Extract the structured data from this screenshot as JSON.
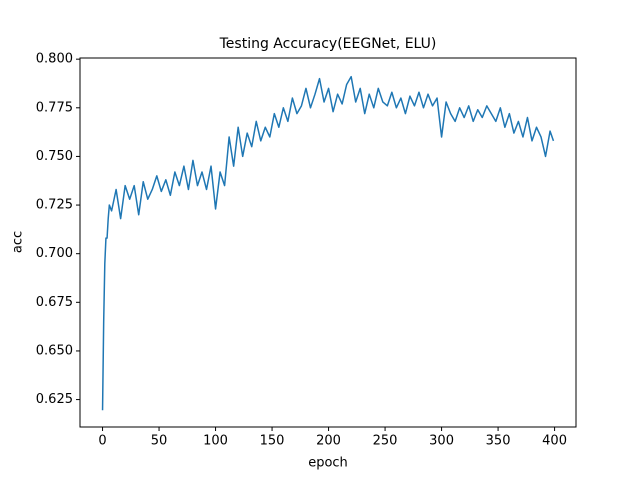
{
  "chart_data": {
    "type": "line",
    "title": "Testing Accuracy(EEGNet, ELU)",
    "x_label": "epoch",
    "y_label": "acc",
    "x": [
      0,
      1,
      2,
      3,
      4,
      5,
      6,
      8,
      12,
      16,
      20,
      24,
      28,
      32,
      36,
      40,
      44,
      48,
      52,
      56,
      60,
      64,
      68,
      72,
      76,
      80,
      84,
      88,
      92,
      96,
      100,
      104,
      108,
      112,
      116,
      120,
      124,
      128,
      132,
      136,
      140,
      144,
      148,
      152,
      156,
      160,
      164,
      168,
      172,
      176,
      180,
      184,
      188,
      192,
      196,
      200,
      204,
      208,
      212,
      216,
      220,
      224,
      228,
      232,
      236,
      240,
      244,
      248,
      252,
      256,
      260,
      264,
      268,
      272,
      276,
      280,
      284,
      288,
      292,
      296,
      300,
      304,
      308,
      312,
      316,
      320,
      324,
      328,
      332,
      336,
      340,
      344,
      348,
      352,
      356,
      360,
      364,
      368,
      372,
      376,
      380,
      384,
      388,
      392,
      396,
      399
    ],
    "series": [
      {
        "name": "acc",
        "color": "#1f77b4",
        "values": [
          0.6195,
          0.665,
          0.695,
          0.708,
          0.708,
          0.718,
          0.725,
          0.722,
          0.733,
          0.718,
          0.735,
          0.728,
          0.735,
          0.72,
          0.737,
          0.728,
          0.733,
          0.74,
          0.732,
          0.738,
          0.73,
          0.742,
          0.735,
          0.745,
          0.733,
          0.748,
          0.735,
          0.742,
          0.733,
          0.745,
          0.723,
          0.742,
          0.735,
          0.76,
          0.745,
          0.765,
          0.75,
          0.762,
          0.755,
          0.768,
          0.758,
          0.765,
          0.76,
          0.772,
          0.765,
          0.775,
          0.768,
          0.78,
          0.772,
          0.776,
          0.785,
          0.775,
          0.782,
          0.79,
          0.778,
          0.785,
          0.773,
          0.782,
          0.777,
          0.787,
          0.791,
          0.778,
          0.785,
          0.772,
          0.782,
          0.775,
          0.785,
          0.778,
          0.776,
          0.783,
          0.775,
          0.78,
          0.772,
          0.781,
          0.776,
          0.783,
          0.775,
          0.782,
          0.776,
          0.78,
          0.76,
          0.778,
          0.772,
          0.768,
          0.775,
          0.77,
          0.776,
          0.768,
          0.774,
          0.77,
          0.776,
          0.772,
          0.768,
          0.775,
          0.765,
          0.772,
          0.762,
          0.768,
          0.76,
          0.77,
          0.758,
          0.765,
          0.76,
          0.75,
          0.763,
          0.758
        ]
      }
    ],
    "xlim": [
      -19.95,
      418.95
    ],
    "xticks": [
      0,
      50,
      100,
      150,
      200,
      250,
      300,
      350,
      400
    ],
    "ylim": [
      0.6109,
      0.8006
    ],
    "yticks": [
      0.625,
      {
        "value": 0.65,
        "label": "0.650"
      },
      0.675,
      {
        "value": 0.7,
        "label": "0.700"
      },
      0.725,
      {
        "value": 0.75,
        "label": "0.750"
      },
      0.775,
      {
        "value": 0.8,
        "label": "0.800"
      }
    ]
  }
}
